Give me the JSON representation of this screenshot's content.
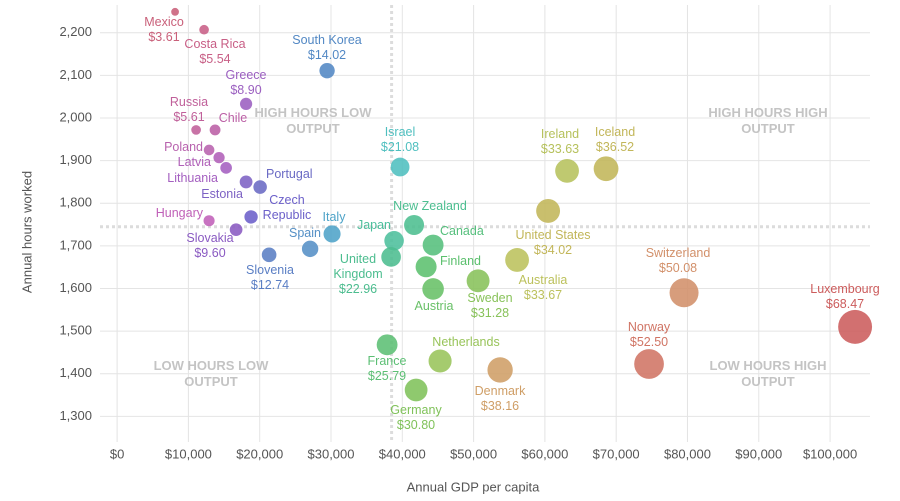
{
  "chart_data": {
    "type": "bubble",
    "x_label": "Annual GDP per capita",
    "y_label": "Annual hours worked",
    "xlim": [
      -2400,
      105600
    ],
    "ylim": [
      1240,
      2265
    ],
    "xticks": [
      {
        "value": 0,
        "label": "$0"
      },
      {
        "value": 10000,
        "label": "$10,000"
      },
      {
        "value": 20000,
        "label": "$20,000"
      },
      {
        "value": 30000,
        "label": "$30,000"
      },
      {
        "value": 40000,
        "label": "$40,000"
      },
      {
        "value": 50000,
        "label": "$50,000"
      },
      {
        "value": 60000,
        "label": "$60,000"
      },
      {
        "value": 70000,
        "label": "$70,000"
      },
      {
        "value": 80000,
        "label": "$80,000"
      },
      {
        "value": 90000,
        "label": "$90,000"
      },
      {
        "value": 100000,
        "label": "$100,000"
      }
    ],
    "yticks": [
      {
        "value": 1300,
        "label": "1,300"
      },
      {
        "value": 1400,
        "label": "1,400"
      },
      {
        "value": 1500,
        "label": "1,500"
      },
      {
        "value": 1600,
        "label": "1,600"
      },
      {
        "value": 1700,
        "label": "1,700"
      },
      {
        "value": 1800,
        "label": "1,800"
      },
      {
        "value": 1900,
        "label": "1,900"
      },
      {
        "value": 2000,
        "label": "2,000"
      },
      {
        "value": 2100,
        "label": "2,100"
      },
      {
        "value": 2200,
        "label": "2,200"
      }
    ],
    "grid": true,
    "reference_x": 38500,
    "reference_y": 1745,
    "annotations": [
      "HIGH HOURS LOW OUTPUT",
      "HIGH HOURS HIGH OUTPUT",
      "LOW HOURS LOW OUTPUT",
      "LOW HOURS HIGH OUTPUT"
    ],
    "labels": [
      "Mexico",
      "Costa Rica",
      "Greece",
      "South Korea",
      "Russia",
      "Chile",
      "Poland",
      "Latvia",
      "Lithuania",
      "Estonia",
      "Portugal",
      "Czech Republic",
      "Hungary",
      "Slovakia",
      "Slovenia",
      "Spain",
      "Italy",
      "Israel",
      "New Zealand",
      "Japan",
      "Canada",
      "United Kingdom",
      "Finland",
      "Austria",
      "Sweden",
      "France",
      "Netherlands",
      "Germany",
      "Denmark",
      "Ireland",
      "Iceland",
      "United States",
      "Australia",
      "Switzerland",
      "Norway",
      "Luxembourg"
    ],
    "x": [
      8130,
      12200,
      18090,
      29450,
      11080,
      13740,
      12900,
      14300,
      15290,
      18090,
      20060,
      18790,
      12900,
      16690,
      21320,
      27070,
      30150,
      39690,
      41650,
      38850,
      44320,
      38430,
      43340,
      44320,
      50630,
      37870,
      45300,
      41940,
      53720,
      63110,
      68580,
      60450,
      56100,
      79520,
      74610,
      103510
    ],
    "values": [
      2249,
      2207,
      2033,
      2111,
      1972,
      1972,
      1925,
      1907,
      1883,
      1850,
      1838,
      1768,
      1759,
      1738,
      1679,
      1693,
      1728,
      1885,
      1749,
      1712,
      1702,
      1674,
      1651,
      1599,
      1618,
      1468,
      1430,
      1362,
      1409,
      1876,
      1881,
      1782,
      1667,
      1590,
      1423,
      1510
    ],
    "sizes": [
      3.61,
      5.54,
      8.9,
      14.02,
      5.61,
      7.0,
      6.7,
      7.5,
      8.1,
      9.8,
      10.9,
      10.6,
      7.3,
      9.6,
      12.74,
      16.0,
      17.4,
      21.08,
      23.8,
      22.7,
      26.0,
      22.96,
      26.3,
      27.7,
      31.28,
      25.79,
      31.7,
      30.8,
      38.16,
      33.63,
      36.52,
      34.02,
      33.67,
      50.08,
      52.5,
      68.47
    ],
    "value_labels": [
      "$3.61",
      "$5.54",
      "$8.90",
      "$14.02",
      "$5.61",
      null,
      null,
      null,
      null,
      null,
      null,
      null,
      null,
      "$9.60",
      "$12.74",
      null,
      null,
      "$21.08",
      null,
      null,
      null,
      "$22.96",
      null,
      null,
      "$31.28",
      "$25.79",
      null,
      "$30.80",
      "$38.16",
      "$33.63",
      "$36.52",
      "$34.02",
      "$33.67",
      "$50.08",
      "$52.50",
      "$68.47"
    ],
    "colors": [
      "#c9607a",
      "#c85f86",
      "#9b5fc0",
      "#5288c4",
      "#c0609a",
      "#bb5fa5",
      "#b862ae",
      "#b060b8",
      "#a45fc0",
      "#7d62c4",
      "#6a6ac4",
      "#6b5fc9",
      "#c060b8",
      "#8a5ac2",
      "#5a7ec4",
      "#5590c6",
      "#4ea3c8",
      "#4fbfbf",
      "#4cbe90",
      "#4cbf9c",
      "#55bf7c",
      "#4cbd8f",
      "#5cc06e",
      "#68c067",
      "#88c25a",
      "#5cbf74",
      "#98c45a",
      "#80c25a",
      "#cf9e66",
      "#b6c15c",
      "#c2b659",
      "#c2b659",
      "#bcc15c",
      "#d2906a",
      "#d07464",
      "#cc5c5c"
    ]
  }
}
